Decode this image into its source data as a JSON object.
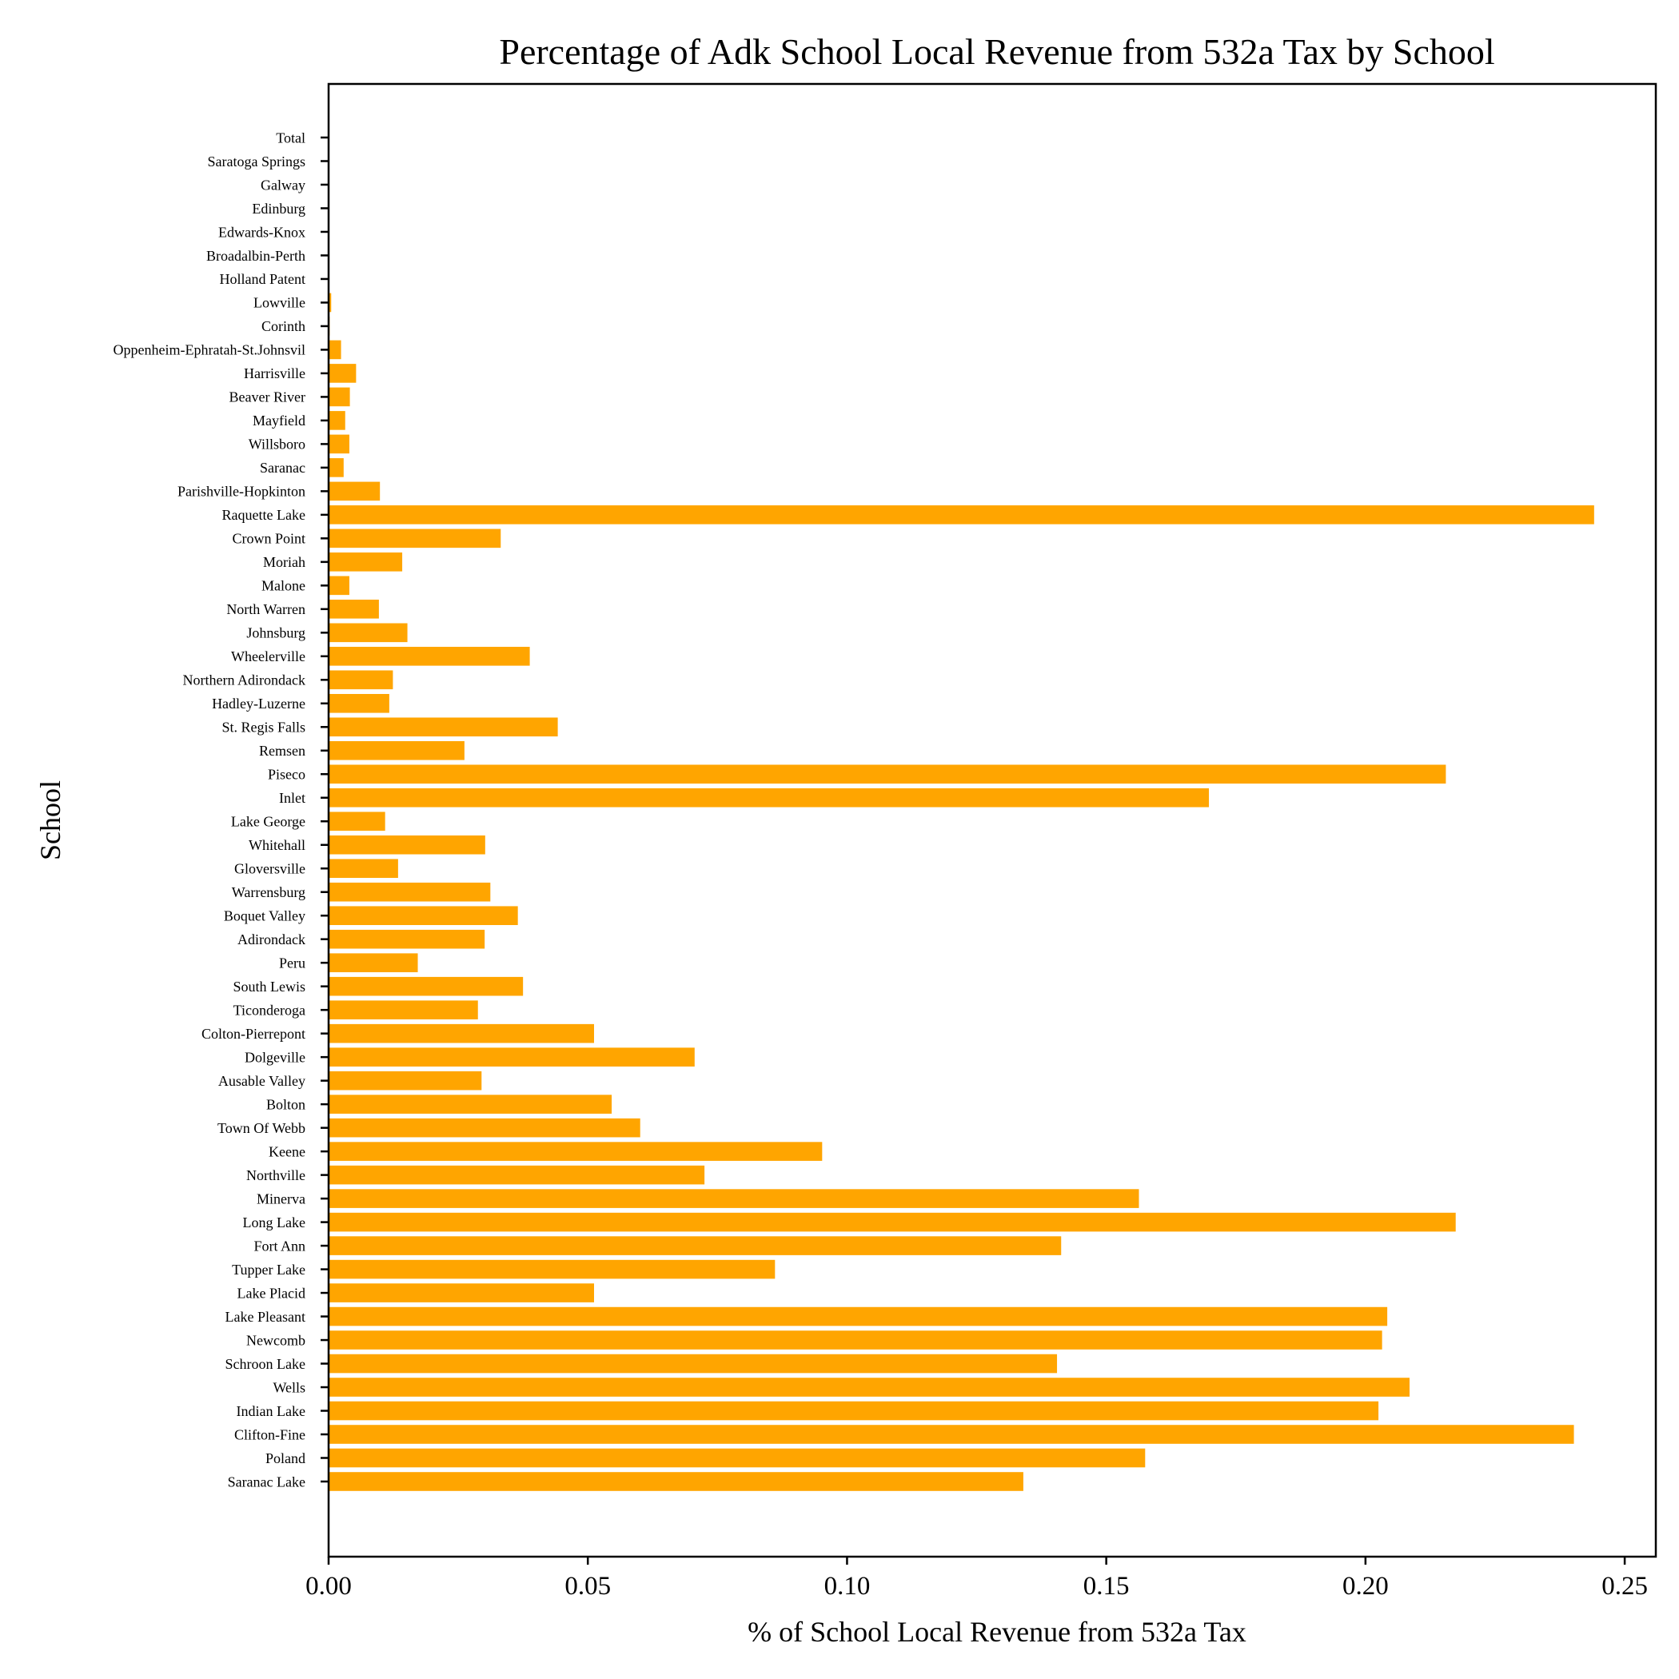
{
  "chart_data": {
    "type": "bar",
    "orientation": "horizontal",
    "title": "Percentage of Adk School Local Revenue from 532a Tax by School",
    "xlabel": "% of School Local Revenue from 532a Tax",
    "ylabel": "School",
    "xlim": [
      0,
      0.256
    ],
    "xticks": [
      "0.00",
      "0.05",
      "0.10",
      "0.15",
      "0.20",
      "0.25"
    ],
    "bar_color": "#FFA500",
    "grid": false,
    "categories": [
      "Saranac Lake",
      "Poland",
      "Clifton-Fine",
      "Indian Lake",
      "Wells",
      "Schroon Lake",
      "Newcomb",
      "Lake Pleasant",
      "Lake Placid",
      "Tupper Lake",
      "Fort Ann",
      "Long Lake",
      "Minerva",
      "Northville",
      "Keene",
      "Town Of Webb",
      "Bolton",
      "Ausable Valley",
      "Dolgeville",
      "Colton-Pierrepont",
      "Ticonderoga",
      "South Lewis",
      "Peru",
      "Adirondack",
      "Boquet Valley",
      "Warrensburg",
      "Gloversville",
      "Whitehall",
      "Lake George",
      "Inlet",
      "Piseco",
      "Remsen",
      "St. Regis Falls",
      "Hadley-Luzerne",
      "Northern Adirondack",
      "Wheelerville",
      "Johnsburg",
      "North Warren",
      "Malone",
      "Moriah",
      "Crown Point",
      "Raquette Lake",
      "Parishville-Hopkinton",
      "Saranac",
      "Willsboro",
      "Mayfield",
      "Beaver River",
      "Harrisville",
      "Oppenheim-Ephratah-St.Johnsvil",
      "Corinth",
      "Lowville",
      "Holland Patent",
      "Broadalbin-Perth",
      "Edwards-Knox",
      "Edinburg",
      "Galway",
      "Saratoga Springs",
      "Total"
    ],
    "values": [
      0.134,
      0.1575,
      0.2402,
      0.2025,
      0.2085,
      0.1405,
      0.2032,
      0.2042,
      0.0512,
      0.0861,
      0.1413,
      0.2174,
      0.1563,
      0.0725,
      0.0952,
      0.0601,
      0.0546,
      0.0295,
      0.0706,
      0.0512,
      0.0288,
      0.0375,
      0.0172,
      0.0301,
      0.0365,
      0.0312,
      0.0134,
      0.0302,
      0.0109,
      0.1698,
      0.2155,
      0.0262,
      0.0442,
      0.0117,
      0.0124,
      0.0388,
      0.0152,
      0.0097,
      0.004,
      0.0142,
      0.0332,
      0.2441,
      0.0099,
      0.0029,
      0.004,
      0.0032,
      0.0041,
      0.0053,
      0.0024,
      0.0002,
      0.0005,
      0.0001,
      0.0001,
      0.0,
      0.0,
      0.0,
      0.0,
      0.0
    ]
  }
}
